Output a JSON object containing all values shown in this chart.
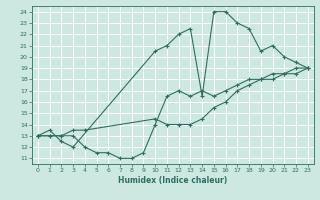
{
  "xlabel": "Humidex (Indice chaleur)",
  "bg_color": "#cde8e0",
  "grid_color": "#b0d8ce",
  "line_color": "#2e6e62",
  "xlim": [
    -0.5,
    23.5
  ],
  "ylim": [
    10.5,
    24.5
  ],
  "xticks": [
    0,
    1,
    2,
    3,
    4,
    5,
    6,
    7,
    8,
    9,
    10,
    11,
    12,
    13,
    14,
    15,
    16,
    17,
    18,
    19,
    20,
    21,
    22,
    23
  ],
  "yticks": [
    11,
    12,
    13,
    14,
    15,
    16,
    17,
    18,
    19,
    20,
    21,
    22,
    23,
    24
  ],
  "line1_x": [
    0,
    1,
    2,
    3,
    4,
    5,
    6,
    7,
    8,
    9,
    10,
    11,
    12,
    13,
    14,
    15,
    16,
    17,
    18,
    19,
    20,
    21,
    22,
    23
  ],
  "line1_y": [
    13,
    13,
    13,
    13,
    12,
    11.5,
    11.5,
    11,
    11,
    11.5,
    14,
    16.5,
    17,
    16.5,
    17,
    16.5,
    17,
    17.5,
    18,
    18,
    18.5,
    18.5,
    18.5,
    19
  ],
  "line2_x": [
    0,
    1,
    2,
    3,
    10,
    11,
    12,
    13,
    14,
    15,
    16,
    17,
    18,
    19,
    20,
    21,
    22,
    23
  ],
  "line2_y": [
    13,
    13.5,
    12.5,
    12,
    20.5,
    21,
    22,
    22.5,
    16.5,
    24,
    24,
    23,
    22.5,
    20.5,
    21,
    20,
    19.5,
    19
  ],
  "line3_x": [
    0,
    1,
    2,
    3,
    4,
    10,
    11,
    12,
    13,
    14,
    15,
    16,
    17,
    18,
    19,
    20,
    21,
    22,
    23
  ],
  "line3_y": [
    13,
    13,
    13,
    13.5,
    13.5,
    14.5,
    14,
    14,
    14,
    14.5,
    15.5,
    16,
    17,
    17.5,
    18,
    18,
    18.5,
    19,
    19
  ]
}
